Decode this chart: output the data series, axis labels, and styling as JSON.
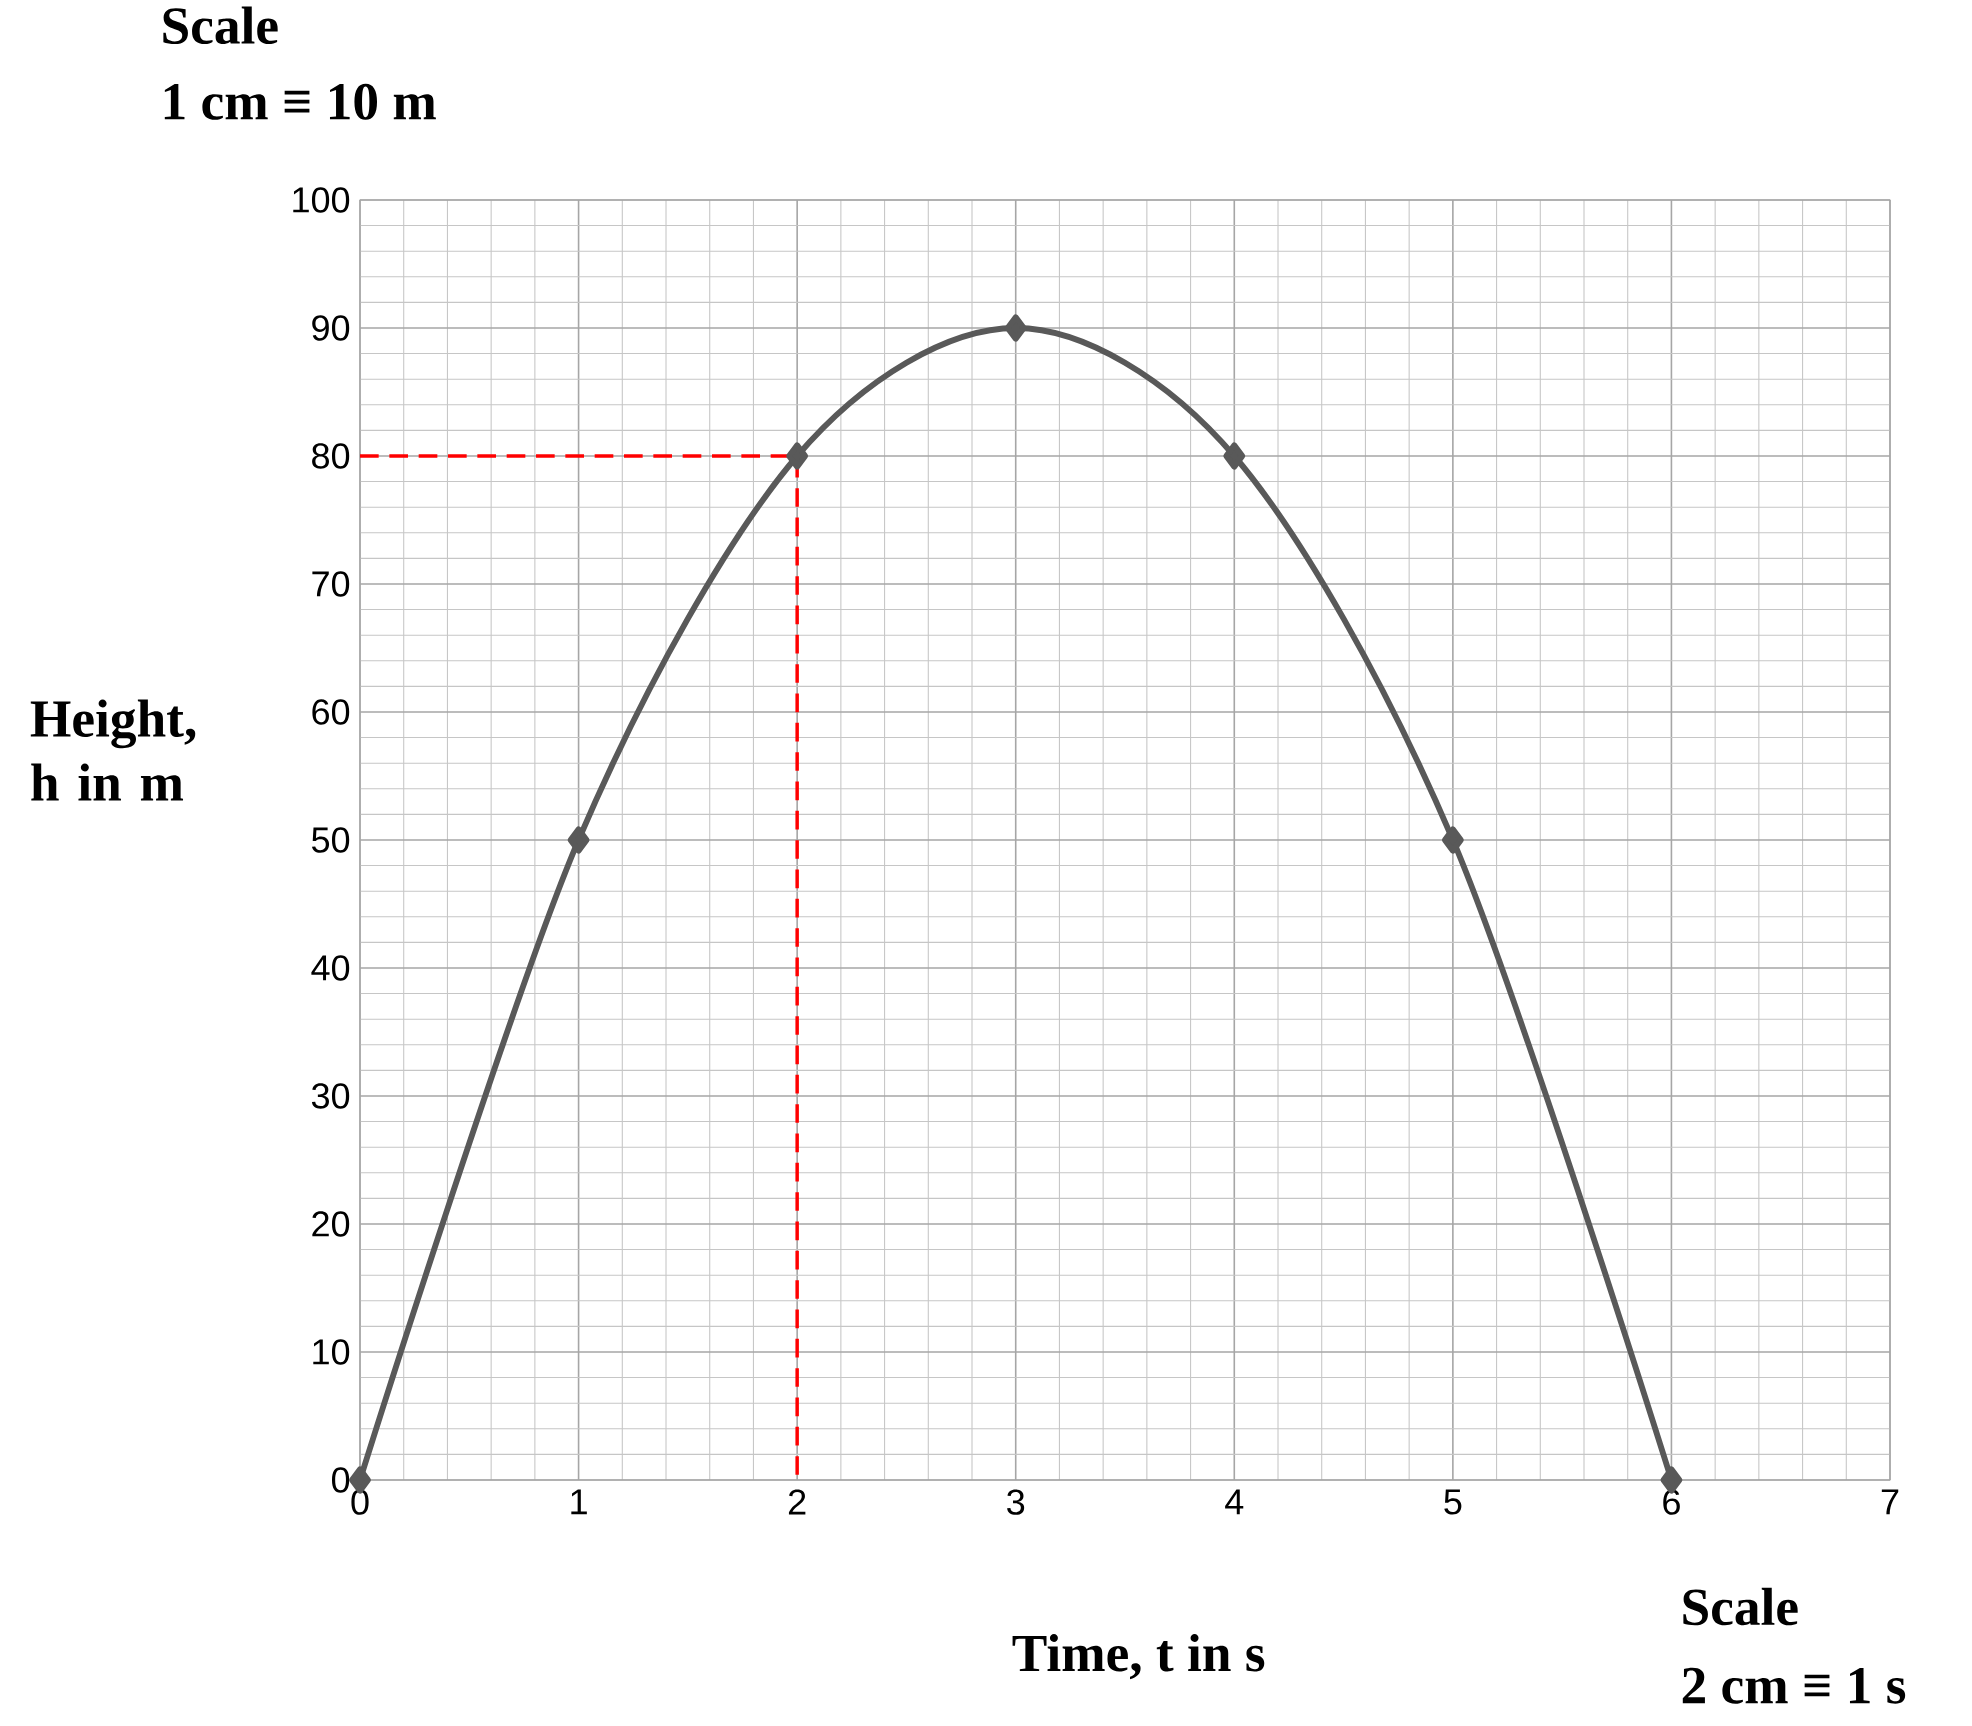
{
  "chart_data": {
    "type": "line",
    "xlabel": "Time, t in s",
    "ylabel": "Height, h in m",
    "xlim": [
      0,
      7
    ],
    "ylim": [
      0,
      100
    ],
    "xticks": [
      0,
      1,
      2,
      3,
      4,
      5,
      6,
      7
    ],
    "yticks": [
      0,
      10,
      20,
      30,
      40,
      50,
      60,
      70,
      80,
      90,
      100
    ],
    "grid": true,
    "series": [
      {
        "type": "line",
        "color": "#595959",
        "marker": "diamond",
        "line_style": "solid",
        "x": [
          0,
          1,
          2,
          3,
          4,
          5,
          6
        ],
        "values": [
          0,
          50,
          80,
          90,
          80,
          50,
          0
        ]
      },
      {
        "type": "line",
        "color": "#ff0000",
        "marker": "none",
        "line_style": "dashed",
        "x": [
          0,
          2,
          2
        ],
        "values": [
          80,
          80,
          0
        ]
      }
    ],
    "annotations": [
      "Scale",
      "1 cm ≡ 10 m",
      "Scale",
      "2 cm ≡ 1 s"
    ]
  }
}
